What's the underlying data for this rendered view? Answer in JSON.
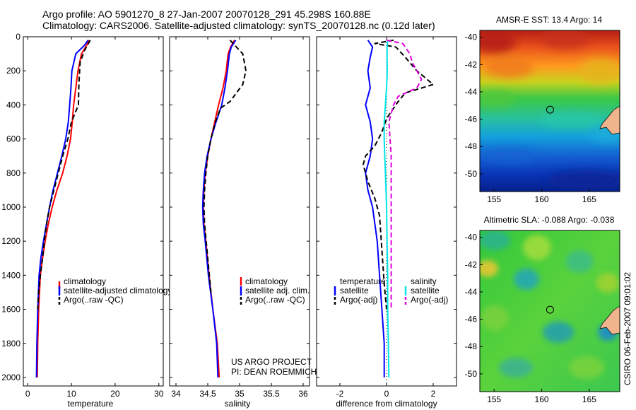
{
  "title_line1": "Argo profile: AO 5901270_8 27-Jan-2007 20070128_291 45.298S 160.88E",
  "title_line2": "Climatology: CARS2006. Satellite-adjusted climatology: synTS_20070128.nc (0.12d later)",
  "credit": "CSIRO 06-Feb-2007 09:01:02",
  "project_line1": "US ARGO PROJECT",
  "project_line2": "PI: DEAN ROEMMICH",
  "colors": {
    "climatology": "#ff0000",
    "satellite": "#0000ff",
    "argo": "#000000",
    "sal_satellite": "#00e5e5",
    "sal_argo": "#e000e0"
  },
  "chart_data": [
    {
      "type": "line",
      "xlabel": "temperature",
      "xlim": [
        -1,
        31
      ],
      "ylim": [
        0,
        2050
      ],
      "xticks": [
        0,
        10,
        20,
        30
      ],
      "yticks": [
        0,
        200,
        400,
        600,
        800,
        1000,
        1200,
        1400,
        1600,
        1800,
        2000
      ],
      "legend": [
        "climatology",
        "satellite-adjusted climatology",
        "Argo(..raw -QC)"
      ],
      "series": [
        {
          "name": "climatology",
          "color": "#ff0000",
          "x": [
            14.0,
            13.5,
            12.3,
            11.5,
            11.0,
            10.5,
            10.2,
            9.8,
            9.0,
            8.0,
            6.7,
            5.6,
            4.7,
            4.0,
            3.4,
            2.9,
            2.5,
            2.3,
            2.2
          ],
          "y": [
            20,
            50,
            100,
            200,
            300,
            400,
            500,
            600,
            700,
            800,
            900,
            1000,
            1100,
            1200,
            1300,
            1400,
            1600,
            1800,
            2000
          ]
        },
        {
          "name": "satellite-adjusted climatology",
          "color": "#0000ff",
          "x": [
            13.8,
            13.0,
            11.0,
            10.1,
            9.9,
            9.6,
            9.3,
            8.7,
            7.8,
            6.8,
            5.8,
            5.0,
            4.3,
            3.6,
            3.0,
            2.6,
            2.3,
            2.1,
            2.0
          ],
          "y": [
            20,
            50,
            100,
            200,
            300,
            400,
            500,
            600,
            700,
            800,
            900,
            1000,
            1100,
            1200,
            1300,
            1400,
            1600,
            1800,
            2000
          ]
        },
        {
          "name": "Argo(..raw -QC)",
          "color": "#000000",
          "x": [
            14.3,
            13.0,
            12.0,
            11.7,
            11.6,
            10.0,
            9.2,
            8.0,
            7.0,
            6.0,
            5.0,
            4.3,
            3.8,
            3.4,
            2.9,
            2.5,
            2.3
          ],
          "y": [
            20,
            80,
            150,
            280,
            400,
            500,
            600,
            700,
            800,
            900,
            1000,
            1100,
            1200,
            1300,
            1400,
            1500,
            1600
          ]
        }
      ]
    },
    {
      "type": "line",
      "xlabel": "salinity",
      "xlim": [
        33.9,
        36.1
      ],
      "ylim": [
        0,
        2050
      ],
      "xticks": [
        34,
        34.5,
        35,
        35.5,
        36
      ],
      "yticks": [
        0,
        200,
        400,
        600,
        800,
        1000,
        1200,
        1400,
        1600,
        1800,
        2000
      ],
      "legend": [
        "climatology",
        "satellite adj. clim.",
        "Argo(..raw -QC)"
      ],
      "series": [
        {
          "name": "climatology",
          "color": "#ff0000",
          "x": [
            34.92,
            34.86,
            34.82,
            34.79,
            34.74,
            34.67,
            34.61,
            34.55,
            34.5,
            34.46,
            34.44,
            34.43,
            34.44,
            34.47,
            34.52,
            34.58,
            34.65,
            34.68
          ],
          "y": [
            20,
            60,
            100,
            200,
            300,
            400,
            500,
            600,
            700,
            800,
            900,
            1000,
            1100,
            1200,
            1400,
            1600,
            1800,
            2000
          ]
        },
        {
          "name": "satellite adj. clim.",
          "color": "#0000ff",
          "x": [
            34.94,
            34.87,
            34.84,
            34.81,
            34.77,
            34.72,
            34.63,
            34.55,
            34.49,
            34.45,
            34.43,
            34.42,
            34.43,
            34.46,
            34.51,
            34.58,
            34.64,
            34.66
          ],
          "y": [
            20,
            60,
            100,
            200,
            300,
            400,
            500,
            600,
            700,
            800,
            900,
            1000,
            1100,
            1200,
            1400,
            1600,
            1800,
            2000
          ]
        },
        {
          "name": "Argo(..raw -QC)",
          "color": "#000000",
          "x": [
            34.85,
            34.95,
            35.05,
            35.1,
            35.05,
            34.85,
            34.7,
            34.62,
            34.55,
            34.5,
            34.47,
            34.45,
            34.44,
            34.45,
            34.5,
            34.55
          ],
          "y": [
            20,
            60,
            100,
            200,
            280,
            380,
            420,
            500,
            600,
            700,
            800,
            900,
            1000,
            1100,
            1300,
            1500
          ]
        }
      ]
    },
    {
      "type": "line",
      "xlabel": "difference from climatology",
      "xlim": [
        -3,
        3
      ],
      "ylim": [
        0,
        2050
      ],
      "xticks": [
        -2,
        0,
        2
      ],
      "legend_temperature_title": "temperature",
      "legend_salinity_title": "salinity",
      "legend": [
        "satellite",
        "Argo(-adj)",
        "satellite",
        "Argo(-adj)"
      ],
      "series": [
        {
          "name": "satellite",
          "group": "temperature",
          "color": "#0000ff",
          "x": [
            -0.8,
            -0.6,
            -0.7,
            -0.8,
            -0.7,
            -0.9,
            -0.7,
            -0.6,
            -0.7,
            -0.9,
            -0.8,
            -0.6,
            -0.5,
            -0.4,
            -0.3,
            -0.2,
            -0.1,
            -0.1
          ],
          "y": [
            20,
            60,
            120,
            200,
            300,
            400,
            500,
            600,
            700,
            800,
            900,
            1000,
            1100,
            1200,
            1400,
            1600,
            1800,
            2000
          ]
        },
        {
          "name": "Argo(-adj)",
          "group": "temperature",
          "color": "#000000",
          "x": [
            0.3,
            -0.5,
            0.4,
            0.8,
            1.3,
            2.0,
            0.8,
            0.5,
            0.3,
            0.0,
            -0.2,
            -0.5,
            -0.9,
            -1.0,
            -0.8,
            -0.5,
            -0.3,
            -0.2,
            -0.1,
            0.0
          ],
          "y": [
            20,
            40,
            60,
            120,
            200,
            280,
            330,
            380,
            420,
            480,
            560,
            640,
            700,
            750,
            850,
            950,
            1050,
            1250,
            1450,
            1600
          ]
        },
        {
          "name": "satellite",
          "group": "salinity",
          "color": "#00e5e5",
          "x": [
            0.05,
            0.02,
            0.02,
            0.03,
            0.0,
            -0.05,
            -0.1,
            -0.1,
            -0.08,
            -0.05,
            -0.02,
            0.0,
            0.02,
            0.05,
            0.05,
            0.08,
            0.1
          ],
          "y": [
            20,
            60,
            120,
            200,
            300,
            400,
            500,
            600,
            700,
            800,
            900,
            1000,
            1200,
            1400,
            1600,
            1800,
            2000
          ]
        },
        {
          "name": "Argo(-adj)",
          "group": "salinity",
          "color": "#e000e0",
          "x": [
            0.0,
            0.7,
            0.9,
            1.0,
            1.1,
            1.5,
            1.3,
            0.5,
            0.3,
            0.2,
            0.1,
            0.2,
            0.2,
            0.2,
            0.2
          ],
          "y": [
            20,
            40,
            80,
            100,
            150,
            250,
            300,
            350,
            400,
            450,
            500,
            700,
            1000,
            1300,
            1600
          ]
        }
      ]
    },
    {
      "type": "heatmap",
      "title": "AMSR-E SST: 13.4 Argo: 14",
      "xlim": [
        153.5,
        168.2
      ],
      "ylim": [
        -51.3,
        -39.5
      ],
      "xticks": [
        155,
        160,
        165
      ],
      "yticks": [
        -40,
        -42,
        -44,
        -46,
        -48,
        -50
      ],
      "marker": {
        "lon": 160.88,
        "lat": -45.3
      }
    },
    {
      "type": "heatmap",
      "title": "Altimetric SLA: -0.088 Argo: -0.038",
      "xlim": [
        153.5,
        168.2
      ],
      "ylim": [
        -51.3,
        -39.5
      ],
      "xticks": [
        155,
        160,
        165
      ],
      "yticks": [
        -40,
        -42,
        -44,
        -46,
        -48,
        -50
      ],
      "marker": {
        "lon": 160.88,
        "lat": -45.3
      }
    }
  ]
}
